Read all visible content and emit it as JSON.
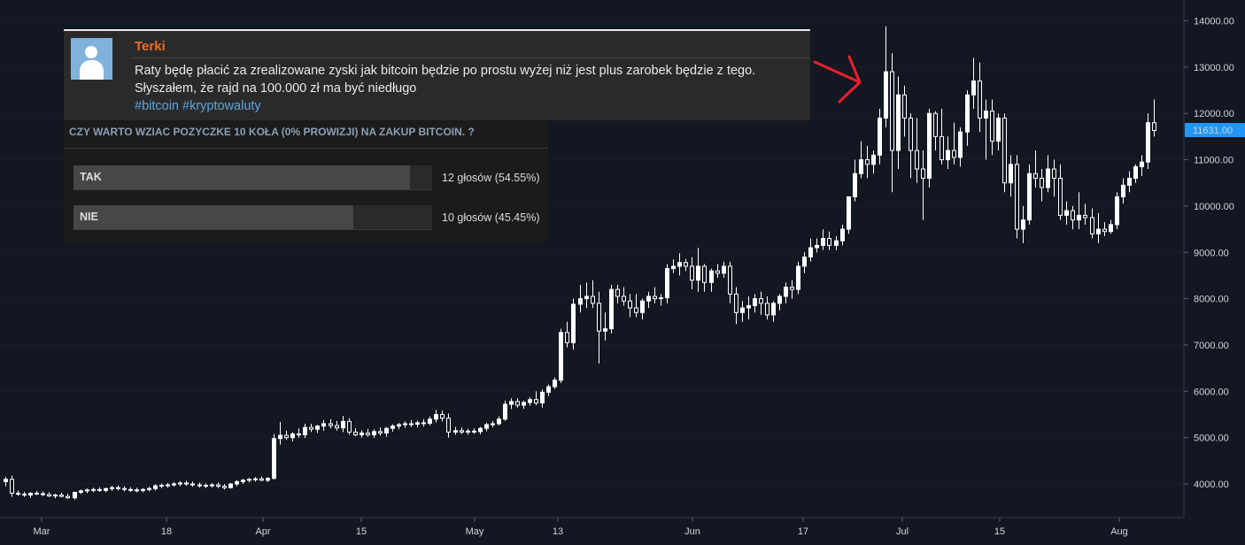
{
  "comment": {
    "author": "Terki",
    "line1": "Raty będę płacić za zrealizowane zyski jak bitcoin będzie po prostu wyżej niż jest plus zarobek będzie z tego.",
    "line2": "Słyszałem, że rajd na 100.000 zł ma być niedługo",
    "tag1": "#bitcoin",
    "tag2": "#kryptowaluty"
  },
  "poll": {
    "question": "CZY WARTO WZIAC POZYCZKE 10 KOŁA (0% PROWIZJI) NA ZAKUP BITCOIN. ?",
    "options": [
      {
        "label": "TAK",
        "votes_text": "12 głosów (54.55%)",
        "fraction": 0.5455
      },
      {
        "label": "NIE",
        "votes_text": "10 głosów (45.45%)",
        "fraction": 0.4545
      }
    ]
  },
  "colors": {
    "background": "#131722",
    "candle": "#ffffff",
    "price_badge": "#2196f3",
    "annotation_arrow": "#e8212b",
    "author": "#f36a1f",
    "hashtag": "#5aa6e0"
  },
  "chart_data": {
    "type": "candlestick",
    "price_axis_labels": [
      "14000.00",
      "13000.00",
      "12000.00",
      "11000.00",
      "10000.00",
      "9000.00",
      "8000.00",
      "7000.00",
      "6000.00",
      "5000.00",
      "4000.00"
    ],
    "time_axis_labels": [
      "Mar",
      "18",
      "Apr",
      "15",
      "May",
      "13",
      "Jun",
      "17",
      "Jul",
      "15",
      "Aug"
    ],
    "ylim": [
      3400,
      14400
    ],
    "current_price": "11631.00",
    "annotation": "arrow",
    "series": [
      {
        "o": 4050,
        "h": 4150,
        "l": 3950,
        "c": 4100
      },
      {
        "o": 4100,
        "h": 4180,
        "l": 3720,
        "c": 3800
      },
      {
        "o": 3800,
        "h": 3860,
        "l": 3740,
        "c": 3780
      },
      {
        "o": 3780,
        "h": 3830,
        "l": 3720,
        "c": 3760
      },
      {
        "o": 3760,
        "h": 3820,
        "l": 3700,
        "c": 3800
      },
      {
        "o": 3800,
        "h": 3850,
        "l": 3760,
        "c": 3790
      },
      {
        "o": 3790,
        "h": 3840,
        "l": 3740,
        "c": 3770
      },
      {
        "o": 3770,
        "h": 3820,
        "l": 3720,
        "c": 3740
      },
      {
        "o": 3740,
        "h": 3790,
        "l": 3690,
        "c": 3760
      },
      {
        "o": 3760,
        "h": 3810,
        "l": 3710,
        "c": 3730
      },
      {
        "o": 3730,
        "h": 3790,
        "l": 3680,
        "c": 3700
      },
      {
        "o": 3700,
        "h": 3800,
        "l": 3660,
        "c": 3820
      },
      {
        "o": 3820,
        "h": 3880,
        "l": 3780,
        "c": 3850
      },
      {
        "o": 3850,
        "h": 3900,
        "l": 3800,
        "c": 3870
      },
      {
        "o": 3870,
        "h": 3920,
        "l": 3820,
        "c": 3880
      },
      {
        "o": 3880,
        "h": 3930,
        "l": 3830,
        "c": 3860
      },
      {
        "o": 3860,
        "h": 3920,
        "l": 3820,
        "c": 3900
      },
      {
        "o": 3900,
        "h": 3960,
        "l": 3850,
        "c": 3920
      },
      {
        "o": 3920,
        "h": 3970,
        "l": 3860,
        "c": 3900
      },
      {
        "o": 3900,
        "h": 3950,
        "l": 3840,
        "c": 3880
      },
      {
        "o": 3880,
        "h": 3930,
        "l": 3830,
        "c": 3870
      },
      {
        "o": 3870,
        "h": 3920,
        "l": 3820,
        "c": 3860
      },
      {
        "o": 3860,
        "h": 3910,
        "l": 3820,
        "c": 3880
      },
      {
        "o": 3880,
        "h": 3940,
        "l": 3840,
        "c": 3900
      },
      {
        "o": 3900,
        "h": 3990,
        "l": 3860,
        "c": 3960
      },
      {
        "o": 3960,
        "h": 4010,
        "l": 3910,
        "c": 3970
      },
      {
        "o": 3970,
        "h": 4020,
        "l": 3920,
        "c": 3980
      },
      {
        "o": 3980,
        "h": 4040,
        "l": 3940,
        "c": 4000
      },
      {
        "o": 4000,
        "h": 4060,
        "l": 3950,
        "c": 4020
      },
      {
        "o": 4020,
        "h": 4070,
        "l": 3960,
        "c": 4000
      },
      {
        "o": 4000,
        "h": 4050,
        "l": 3940,
        "c": 3980
      },
      {
        "o": 3980,
        "h": 4030,
        "l": 3920,
        "c": 3960
      },
      {
        "o": 3960,
        "h": 4010,
        "l": 3910,
        "c": 3970
      },
      {
        "o": 3970,
        "h": 4020,
        "l": 3920,
        "c": 3980
      },
      {
        "o": 3980,
        "h": 4030,
        "l": 3910,
        "c": 3950
      },
      {
        "o": 3950,
        "h": 4000,
        "l": 3880,
        "c": 3920
      },
      {
        "o": 3920,
        "h": 4020,
        "l": 3900,
        "c": 4000
      },
      {
        "o": 4000,
        "h": 4080,
        "l": 3950,
        "c": 4050
      },
      {
        "o": 4050,
        "h": 4110,
        "l": 4000,
        "c": 4080
      },
      {
        "o": 4080,
        "h": 4130,
        "l": 4030,
        "c": 4100
      },
      {
        "o": 4100,
        "h": 4150,
        "l": 4050,
        "c": 4110
      },
      {
        "o": 4110,
        "h": 4160,
        "l": 4060,
        "c": 4080
      },
      {
        "o": 4080,
        "h": 4150,
        "l": 4040,
        "c": 4120
      },
      {
        "o": 4120,
        "h": 5080,
        "l": 4100,
        "c": 4980
      },
      {
        "o": 4980,
        "h": 5340,
        "l": 4850,
        "c": 5050
      },
      {
        "o": 5050,
        "h": 5150,
        "l": 4950,
        "c": 5000
      },
      {
        "o": 5000,
        "h": 5120,
        "l": 4920,
        "c": 5080
      },
      {
        "o": 5080,
        "h": 5200,
        "l": 5000,
        "c": 5060
      },
      {
        "o": 5060,
        "h": 5300,
        "l": 4990,
        "c": 5220
      },
      {
        "o": 5220,
        "h": 5300,
        "l": 5120,
        "c": 5180
      },
      {
        "o": 5180,
        "h": 5280,
        "l": 5100,
        "c": 5250
      },
      {
        "o": 5250,
        "h": 5380,
        "l": 5150,
        "c": 5300
      },
      {
        "o": 5300,
        "h": 5400,
        "l": 5200,
        "c": 5260
      },
      {
        "o": 5260,
        "h": 5360,
        "l": 5150,
        "c": 5210
      },
      {
        "o": 5210,
        "h": 5470,
        "l": 5120,
        "c": 5350
      },
      {
        "o": 5350,
        "h": 5420,
        "l": 5060,
        "c": 5120
      },
      {
        "o": 5120,
        "h": 5200,
        "l": 5030,
        "c": 5060
      },
      {
        "o": 5060,
        "h": 5160,
        "l": 5000,
        "c": 5100
      },
      {
        "o": 5100,
        "h": 5190,
        "l": 5020,
        "c": 5060
      },
      {
        "o": 5060,
        "h": 5180,
        "l": 4990,
        "c": 5130
      },
      {
        "o": 5130,
        "h": 5220,
        "l": 5040,
        "c": 5100
      },
      {
        "o": 5100,
        "h": 5230,
        "l": 5020,
        "c": 5200
      },
      {
        "o": 5200,
        "h": 5290,
        "l": 5130,
        "c": 5250
      },
      {
        "o": 5250,
        "h": 5320,
        "l": 5180,
        "c": 5280
      },
      {
        "o": 5280,
        "h": 5350,
        "l": 5210,
        "c": 5300
      },
      {
        "o": 5300,
        "h": 5380,
        "l": 5230,
        "c": 5290
      },
      {
        "o": 5290,
        "h": 5370,
        "l": 5220,
        "c": 5320
      },
      {
        "o": 5320,
        "h": 5400,
        "l": 5240,
        "c": 5310
      },
      {
        "o": 5310,
        "h": 5460,
        "l": 5260,
        "c": 5400
      },
      {
        "o": 5400,
        "h": 5600,
        "l": 5330,
        "c": 5500
      },
      {
        "o": 5500,
        "h": 5580,
        "l": 5350,
        "c": 5420
      },
      {
        "o": 5420,
        "h": 5520,
        "l": 5000,
        "c": 5120
      },
      {
        "o": 5120,
        "h": 5230,
        "l": 5060,
        "c": 5150
      },
      {
        "o": 5150,
        "h": 5220,
        "l": 5080,
        "c": 5120
      },
      {
        "o": 5120,
        "h": 5190,
        "l": 5060,
        "c": 5140
      },
      {
        "o": 5140,
        "h": 5200,
        "l": 5080,
        "c": 5130
      },
      {
        "o": 5130,
        "h": 5230,
        "l": 5070,
        "c": 5200
      },
      {
        "o": 5200,
        "h": 5320,
        "l": 5140,
        "c": 5280
      },
      {
        "o": 5280,
        "h": 5360,
        "l": 5220,
        "c": 5300
      },
      {
        "o": 5300,
        "h": 5460,
        "l": 5260,
        "c": 5400
      },
      {
        "o": 5400,
        "h": 5800,
        "l": 5360,
        "c": 5720
      },
      {
        "o": 5720,
        "h": 5850,
        "l": 5620,
        "c": 5780
      },
      {
        "o": 5780,
        "h": 5850,
        "l": 5650,
        "c": 5700
      },
      {
        "o": 5700,
        "h": 5800,
        "l": 5620,
        "c": 5760
      },
      {
        "o": 5760,
        "h": 5870,
        "l": 5690,
        "c": 5820
      },
      {
        "o": 5820,
        "h": 6000,
        "l": 5700,
        "c": 5750
      },
      {
        "o": 5750,
        "h": 6040,
        "l": 5650,
        "c": 5980
      },
      {
        "o": 5980,
        "h": 6150,
        "l": 5900,
        "c": 6100
      },
      {
        "o": 6100,
        "h": 6300,
        "l": 6050,
        "c": 6240
      },
      {
        "o": 6240,
        "h": 7350,
        "l": 6180,
        "c": 7270
      },
      {
        "o": 7270,
        "h": 7500,
        "l": 6950,
        "c": 7050
      },
      {
        "o": 7050,
        "h": 8000,
        "l": 6900,
        "c": 7880
      },
      {
        "o": 7880,
        "h": 8300,
        "l": 7700,
        "c": 8000
      },
      {
        "o": 8000,
        "h": 8350,
        "l": 7800,
        "c": 8050
      },
      {
        "o": 8050,
        "h": 8400,
        "l": 7800,
        "c": 7900
      },
      {
        "o": 7900,
        "h": 8150,
        "l": 6600,
        "c": 7300
      },
      {
        "o": 7300,
        "h": 7700,
        "l": 7100,
        "c": 7350
      },
      {
        "o": 7350,
        "h": 8300,
        "l": 7250,
        "c": 8200
      },
      {
        "o": 8200,
        "h": 8300,
        "l": 7900,
        "c": 8050
      },
      {
        "o": 8050,
        "h": 8250,
        "l": 7850,
        "c": 7950
      },
      {
        "o": 7950,
        "h": 8100,
        "l": 7600,
        "c": 7800
      },
      {
        "o": 7800,
        "h": 8100,
        "l": 7600,
        "c": 7700
      },
      {
        "o": 7700,
        "h": 8000,
        "l": 7550,
        "c": 7950
      },
      {
        "o": 7950,
        "h": 8150,
        "l": 7800,
        "c": 8050
      },
      {
        "o": 8050,
        "h": 8250,
        "l": 7900,
        "c": 8000
      },
      {
        "o": 8000,
        "h": 8100,
        "l": 7850,
        "c": 8020
      },
      {
        "o": 8020,
        "h": 8750,
        "l": 7900,
        "c": 8650
      },
      {
        "o": 8650,
        "h": 8850,
        "l": 8550,
        "c": 8700
      },
      {
        "o": 8700,
        "h": 8980,
        "l": 8500,
        "c": 8780
      },
      {
        "o": 8780,
        "h": 8860,
        "l": 8600,
        "c": 8700
      },
      {
        "o": 8700,
        "h": 8900,
        "l": 8200,
        "c": 8400
      },
      {
        "o": 8400,
        "h": 9100,
        "l": 8150,
        "c": 8700
      },
      {
        "o": 8700,
        "h": 8750,
        "l": 8150,
        "c": 8350
      },
      {
        "o": 8350,
        "h": 8650,
        "l": 8150,
        "c": 8600
      },
      {
        "o": 8600,
        "h": 8750,
        "l": 8450,
        "c": 8550
      },
      {
        "o": 8550,
        "h": 8800,
        "l": 8450,
        "c": 8700
      },
      {
        "o": 8700,
        "h": 8800,
        "l": 7900,
        "c": 8100
      },
      {
        "o": 8100,
        "h": 8250,
        "l": 7450,
        "c": 7700
      },
      {
        "o": 7700,
        "h": 7950,
        "l": 7500,
        "c": 7800
      },
      {
        "o": 7800,
        "h": 8050,
        "l": 7550,
        "c": 7850
      },
      {
        "o": 7850,
        "h": 8100,
        "l": 7700,
        "c": 8000
      },
      {
        "o": 8000,
        "h": 8150,
        "l": 7650,
        "c": 7900
      },
      {
        "o": 7900,
        "h": 8050,
        "l": 7550,
        "c": 7650
      },
      {
        "o": 7650,
        "h": 7950,
        "l": 7500,
        "c": 7900
      },
      {
        "o": 7900,
        "h": 8100,
        "l": 7750,
        "c": 8050
      },
      {
        "o": 8050,
        "h": 8350,
        "l": 7900,
        "c": 8250
      },
      {
        "o": 8250,
        "h": 8400,
        "l": 8000,
        "c": 8200
      },
      {
        "o": 8200,
        "h": 8800,
        "l": 8100,
        "c": 8700
      },
      {
        "o": 8700,
        "h": 9000,
        "l": 8550,
        "c": 8900
      },
      {
        "o": 8900,
        "h": 9300,
        "l": 8800,
        "c": 9100
      },
      {
        "o": 9100,
        "h": 9300,
        "l": 9000,
        "c": 9150
      },
      {
        "o": 9150,
        "h": 9500,
        "l": 9050,
        "c": 9300
      },
      {
        "o": 9300,
        "h": 9450,
        "l": 9050,
        "c": 9150
      },
      {
        "o": 9150,
        "h": 9350,
        "l": 9050,
        "c": 9250
      },
      {
        "o": 9250,
        "h": 9600,
        "l": 9150,
        "c": 9500
      },
      {
        "o": 9500,
        "h": 10200,
        "l": 9400,
        "c": 10200
      },
      {
        "o": 10200,
        "h": 11000,
        "l": 10100,
        "c": 10700
      },
      {
        "o": 10700,
        "h": 11400,
        "l": 10600,
        "c": 11000
      },
      {
        "o": 11000,
        "h": 11300,
        "l": 10600,
        "c": 10900
      },
      {
        "o": 10900,
        "h": 11200,
        "l": 10700,
        "c": 11100
      },
      {
        "o": 11100,
        "h": 12100,
        "l": 10900,
        "c": 11900
      },
      {
        "o": 11900,
        "h": 13880,
        "l": 11700,
        "c": 12900
      },
      {
        "o": 12900,
        "h": 13300,
        "l": 10300,
        "c": 11200
      },
      {
        "o": 11200,
        "h": 12800,
        "l": 10800,
        "c": 12400
      },
      {
        "o": 12400,
        "h": 12600,
        "l": 11500,
        "c": 11900
      },
      {
        "o": 11900,
        "h": 12000,
        "l": 10600,
        "c": 11200
      },
      {
        "o": 11200,
        "h": 11900,
        "l": 10500,
        "c": 10800
      },
      {
        "o": 10800,
        "h": 11200,
        "l": 9700,
        "c": 10600
      },
      {
        "o": 10600,
        "h": 12100,
        "l": 10400,
        "c": 12000
      },
      {
        "o": 12000,
        "h": 12050,
        "l": 11200,
        "c": 11500
      },
      {
        "o": 11500,
        "h": 12100,
        "l": 10900,
        "c": 11000
      },
      {
        "o": 11000,
        "h": 11500,
        "l": 10800,
        "c": 11200
      },
      {
        "o": 11200,
        "h": 11800,
        "l": 10900,
        "c": 11050
      },
      {
        "o": 11050,
        "h": 11700,
        "l": 10850,
        "c": 11600
      },
      {
        "o": 11600,
        "h": 12500,
        "l": 11300,
        "c": 12400
      },
      {
        "o": 12400,
        "h": 13200,
        "l": 12100,
        "c": 12700
      },
      {
        "o": 12700,
        "h": 13100,
        "l": 11600,
        "c": 11900
      },
      {
        "o": 11900,
        "h": 12300,
        "l": 11000,
        "c": 12050
      },
      {
        "o": 12050,
        "h": 12300,
        "l": 11100,
        "c": 11400
      },
      {
        "o": 11400,
        "h": 12000,
        "l": 11200,
        "c": 11900
      },
      {
        "o": 11900,
        "h": 12000,
        "l": 10300,
        "c": 10500
      },
      {
        "o": 10500,
        "h": 11100,
        "l": 10200,
        "c": 10900
      },
      {
        "o": 10900,
        "h": 11100,
        "l": 9300,
        "c": 9500
      },
      {
        "o": 9500,
        "h": 10000,
        "l": 9200,
        "c": 9700
      },
      {
        "o": 9700,
        "h": 10900,
        "l": 9600,
        "c": 10700
      },
      {
        "o": 10700,
        "h": 11200,
        "l": 10400,
        "c": 10600
      },
      {
        "o": 10600,
        "h": 10800,
        "l": 10100,
        "c": 10400
      },
      {
        "o": 10400,
        "h": 11100,
        "l": 10300,
        "c": 10800
      },
      {
        "o": 10800,
        "h": 11000,
        "l": 10200,
        "c": 10600
      },
      {
        "o": 10600,
        "h": 10900,
        "l": 9700,
        "c": 9800
      },
      {
        "o": 9800,
        "h": 10100,
        "l": 9600,
        "c": 9900
      },
      {
        "o": 9900,
        "h": 10000,
        "l": 9500,
        "c": 9700
      },
      {
        "o": 9700,
        "h": 10300,
        "l": 9500,
        "c": 9800
      },
      {
        "o": 9800,
        "h": 10050,
        "l": 9600,
        "c": 9750
      },
      {
        "o": 9750,
        "h": 9950,
        "l": 9300,
        "c": 9400
      },
      {
        "o": 9400,
        "h": 9850,
        "l": 9200,
        "c": 9500
      },
      {
        "o": 9500,
        "h": 9650,
        "l": 9350,
        "c": 9450
      },
      {
        "o": 9450,
        "h": 9700,
        "l": 9400,
        "c": 9600
      },
      {
        "o": 9600,
        "h": 10300,
        "l": 9500,
        "c": 10200
      },
      {
        "o": 10200,
        "h": 10600,
        "l": 10050,
        "c": 10450
      },
      {
        "o": 10450,
        "h": 10750,
        "l": 10300,
        "c": 10600
      },
      {
        "o": 10600,
        "h": 10900,
        "l": 10500,
        "c": 10850
      },
      {
        "o": 10850,
        "h": 11100,
        "l": 10650,
        "c": 10950
      },
      {
        "o": 10950,
        "h": 12000,
        "l": 10800,
        "c": 11800
      },
      {
        "o": 11800,
        "h": 12300,
        "l": 11500,
        "c": 11631
      }
    ]
  }
}
